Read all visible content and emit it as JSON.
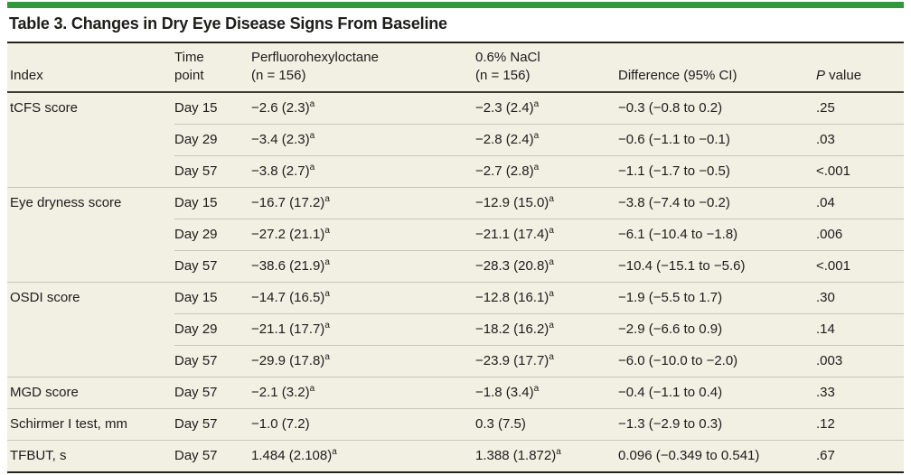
{
  "colors": {
    "accent-green": "#2d9b3c",
    "table-bg": "#f2efe3",
    "rule-dark": "#26231e",
    "rule-header": "#3c3933",
    "rule-light": "#c9c5b8",
    "text": "#1e1d1b"
  },
  "title": "Table 3. Changes in Dry Eye Disease Signs From Baseline",
  "header": {
    "index": "Index",
    "time_line1": "Time",
    "time_line2": "point",
    "pfho_line1": "Perfluorohexyloctane",
    "pfho_line2": "(n = 156)",
    "nacl_line1": "0.6% NaCl",
    "nacl_line2": "(n = 156)",
    "difference": "Difference (95% CI)",
    "p_italic": "P",
    "p_rest": " value"
  },
  "rows": [
    {
      "index": "tCFS score",
      "time": "Day 15",
      "pfho": {
        "text": "−2.6 (2.3)",
        "sup": "a"
      },
      "nacl": {
        "text": "−2.3 (2.4)",
        "sup": "a"
      },
      "difference": "−0.3 (−0.8 to 0.2)",
      "p": ".25"
    },
    {
      "index": "",
      "time": "Day 29",
      "pfho": {
        "text": "−3.4 (2.3)",
        "sup": "a"
      },
      "nacl": {
        "text": "−2.8 (2.4)",
        "sup": "a"
      },
      "difference": "−0.6 (−1.1 to −0.1)",
      "p": ".03"
    },
    {
      "index": "",
      "time": "Day 57",
      "pfho": {
        "text": "−3.8 (2.7)",
        "sup": "a"
      },
      "nacl": {
        "text": "−2.7 (2.8)",
        "sup": "a"
      },
      "difference": "−1.1 (−1.7 to −0.5)",
      "p": "<.001"
    },
    {
      "index": "Eye dryness score",
      "time": "Day 15",
      "pfho": {
        "text": "−16.7 (17.2)",
        "sup": "a"
      },
      "nacl": {
        "text": "−12.9 (15.0)",
        "sup": "a"
      },
      "difference": "−3.8 (−7.4 to −0.2)",
      "p": ".04"
    },
    {
      "index": "",
      "time": "Day 29",
      "pfho": {
        "text": "−27.2 (21.1)",
        "sup": "a"
      },
      "nacl": {
        "text": "−21.1 (17.4)",
        "sup": "a"
      },
      "difference": "−6.1 (−10.4 to −1.8)",
      "p": ".006"
    },
    {
      "index": "",
      "time": "Day 57",
      "pfho": {
        "text": "−38.6 (21.9)",
        "sup": "a"
      },
      "nacl": {
        "text": "−28.3 (20.8)",
        "sup": "a"
      },
      "difference": "−10.4 (−15.1 to −5.6)",
      "p": "<.001"
    },
    {
      "index": "OSDI score",
      "time": "Day 15",
      "pfho": {
        "text": "−14.7 (16.5)",
        "sup": "a"
      },
      "nacl": {
        "text": "−12.8 (16.1)",
        "sup": "a"
      },
      "difference": "−1.9 (−5.5 to 1.7)",
      "p": ".30"
    },
    {
      "index": "",
      "time": "Day 29",
      "pfho": {
        "text": "−21.1 (17.7)",
        "sup": "a"
      },
      "nacl": {
        "text": "−18.2 (16.2)",
        "sup": "a"
      },
      "difference": "−2.9 (−6.6 to 0.9)",
      "p": ".14"
    },
    {
      "index": "",
      "time": "Day 57",
      "pfho": {
        "text": "−29.9 (17.8)",
        "sup": "a"
      },
      "nacl": {
        "text": "−23.9 (17.7)",
        "sup": "a"
      },
      "difference": "−6.0 (−10.0 to −2.0)",
      "p": ".003"
    },
    {
      "index": "MGD score",
      "time": "Day 57",
      "pfho": {
        "text": "−2.1 (3.2)",
        "sup": "a"
      },
      "nacl": {
        "text": "−1.8 (3.4)",
        "sup": "a"
      },
      "difference": "−0.4 (−1.1 to 0.4)",
      "p": ".33"
    },
    {
      "index": "Schirmer I test, mm",
      "time": "Day 57",
      "pfho": {
        "text": "−1.0 (7.2)",
        "sup": ""
      },
      "nacl": {
        "text": "0.3 (7.5)",
        "sup": ""
      },
      "difference": "−1.3 (−2.9 to 0.3)",
      "p": ".12"
    },
    {
      "index": "TFBUT, s",
      "time": "Day 57",
      "pfho": {
        "text": "1.484 (2.108)",
        "sup": "a"
      },
      "nacl": {
        "text": "1.388 (1.872)",
        "sup": "a"
      },
      "difference": "0.096 (−0.349 to 0.541)",
      "p": ".67"
    }
  ]
}
